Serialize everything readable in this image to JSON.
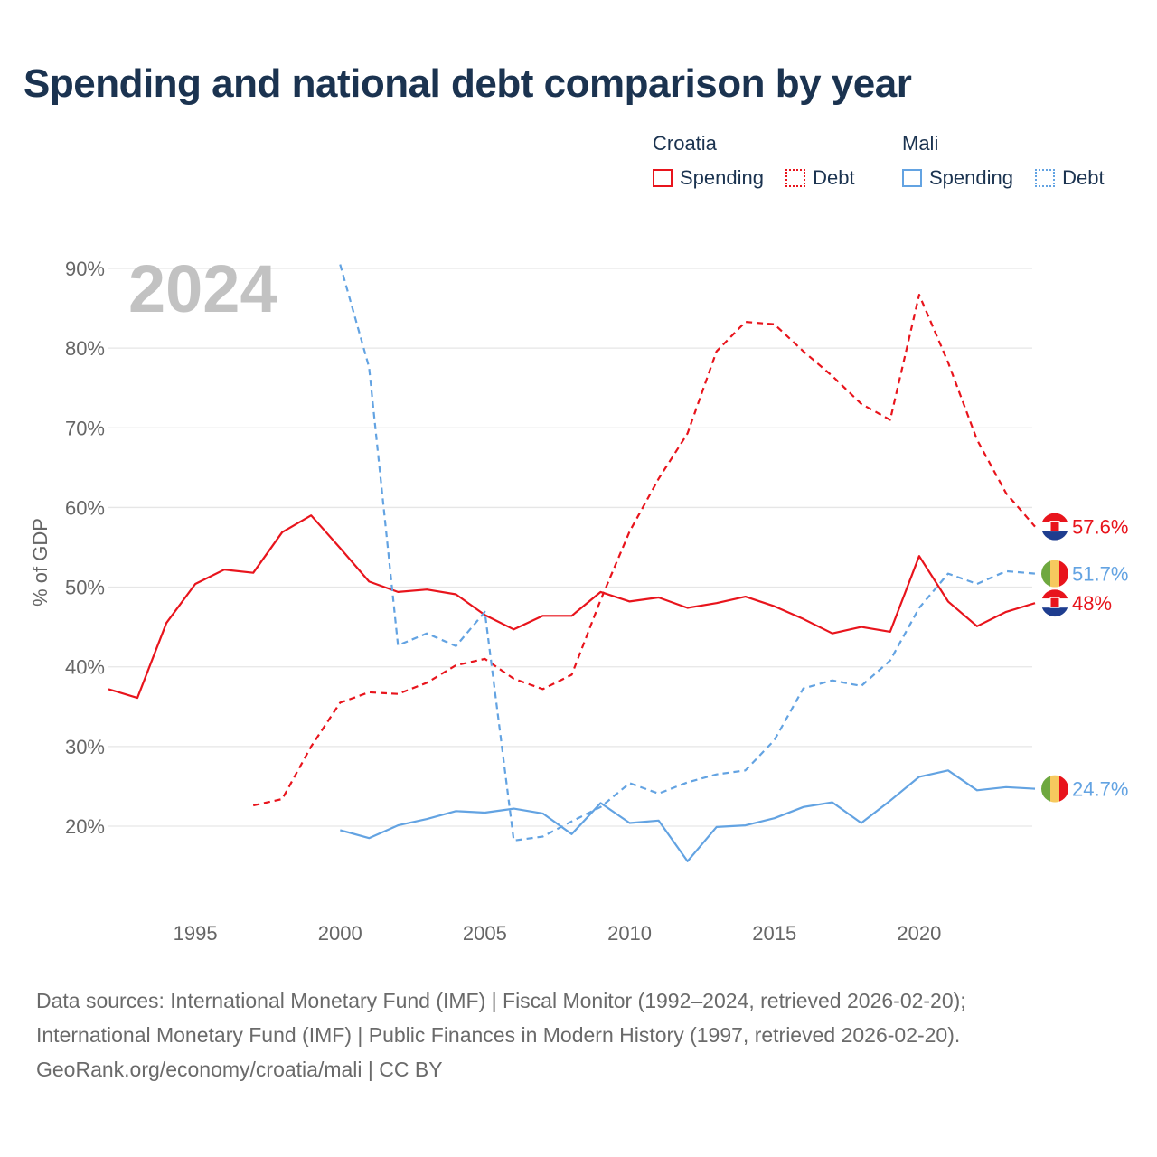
{
  "chart_data": {
    "type": "line",
    "title": "Spending and national debt comparison by year",
    "year_label": "2024",
    "ylabel": "% of GDP",
    "xlabel": "",
    "xlim": [
      1992,
      2024
    ],
    "ylim": [
      10,
      90
    ],
    "y_ticks": [
      20,
      30,
      40,
      50,
      60,
      70,
      80,
      90
    ],
    "y_tick_labels": [
      "20%",
      "30%",
      "40%",
      "50%",
      "60%",
      "70%",
      "80%",
      "90%"
    ],
    "x_ticks": [
      1995,
      2000,
      2005,
      2010,
      2015,
      2020
    ],
    "x_tick_labels": [
      "1995",
      "2000",
      "2005",
      "2010",
      "2015",
      "2020"
    ],
    "legend": {
      "placement": "top-right",
      "groups": [
        {
          "name": "Croatia",
          "items": [
            "Spending",
            "Debt"
          ]
        },
        {
          "name": "Mali",
          "items": [
            "Spending",
            "Debt"
          ]
        }
      ]
    },
    "series": [
      {
        "name": "Croatia Spending",
        "country": "Croatia",
        "metric": "Spending",
        "color": "#e8141c",
        "style": "solid",
        "end_label": "48%",
        "x": [
          1992,
          1993,
          1994,
          1995,
          1996,
          1997,
          1998,
          1999,
          2000,
          2001,
          2002,
          2003,
          2004,
          2005,
          2006,
          2007,
          2008,
          2009,
          2010,
          2011,
          2012,
          2013,
          2014,
          2015,
          2016,
          2017,
          2018,
          2019,
          2020,
          2021,
          2022,
          2023,
          2024
        ],
        "values": [
          37.2,
          36.1,
          45.5,
          50.4,
          52.2,
          51.8,
          56.9,
          59.0,
          54.9,
          50.7,
          49.4,
          49.7,
          49.1,
          46.5,
          44.7,
          46.4,
          46.4,
          49.4,
          48.2,
          48.7,
          47.4,
          48.0,
          48.8,
          47.6,
          46.0,
          44.2,
          45.0,
          44.4,
          53.9,
          48.2,
          45.1,
          46.9,
          48.0
        ]
      },
      {
        "name": "Croatia Debt",
        "country": "Croatia",
        "metric": "Debt",
        "color": "#e8141c",
        "style": "dashed",
        "end_label": "57.6%",
        "x": [
          1997,
          1998,
          1999,
          2000,
          2001,
          2002,
          2003,
          2004,
          2005,
          2006,
          2007,
          2008,
          2009,
          2010,
          2011,
          2012,
          2013,
          2014,
          2015,
          2016,
          2017,
          2018,
          2019,
          2020,
          2021,
          2022,
          2023,
          2024
        ],
        "values": [
          22.6,
          23.4,
          30.0,
          35.5,
          36.8,
          36.6,
          38.0,
          40.2,
          41.0,
          38.5,
          37.2,
          39.0,
          48.4,
          57.0,
          63.6,
          69.3,
          79.6,
          83.3,
          83.0,
          79.6,
          76.5,
          73.0,
          71.0,
          86.7,
          78.2,
          68.5,
          61.8,
          57.6
        ]
      },
      {
        "name": "Mali Spending",
        "country": "Mali",
        "metric": "Spending",
        "color": "#63a3e2",
        "style": "solid",
        "end_label": "24.7%",
        "x": [
          2000,
          2001,
          2002,
          2003,
          2004,
          2005,
          2006,
          2007,
          2008,
          2009,
          2010,
          2011,
          2012,
          2013,
          2014,
          2015,
          2016,
          2017,
          2018,
          2019,
          2020,
          2021,
          2022,
          2023,
          2024
        ],
        "values": [
          19.5,
          18.5,
          20.1,
          20.9,
          21.9,
          21.7,
          22.2,
          21.6,
          19.0,
          22.9,
          20.4,
          20.7,
          15.6,
          19.9,
          20.1,
          21.0,
          22.4,
          23.0,
          20.4,
          23.2,
          26.2,
          27.0,
          24.5,
          24.9,
          24.7
        ]
      },
      {
        "name": "Mali Debt",
        "country": "Mali",
        "metric": "Debt",
        "color": "#63a3e2",
        "style": "dashed",
        "end_label": "51.7%",
        "x": [
          2000,
          2001,
          2002,
          2003,
          2004,
          2005,
          2006,
          2007,
          2008,
          2009,
          2010,
          2011,
          2012,
          2013,
          2014,
          2015,
          2016,
          2017,
          2018,
          2019,
          2020,
          2021,
          2022,
          2023,
          2024
        ],
        "values": [
          90.5,
          77.6,
          42.7,
          44.2,
          42.6,
          46.9,
          18.2,
          18.7,
          20.6,
          22.4,
          25.4,
          24.1,
          25.5,
          26.5,
          27.0,
          30.8,
          37.3,
          38.3,
          37.6,
          40.8,
          47.4,
          51.7,
          50.4,
          52.0,
          51.7
        ]
      }
    ]
  },
  "colors": {
    "croatia": "#e8141c",
    "mali": "#63a3e2",
    "title": "#1b3350",
    "grid": "#e6e6e6",
    "axis_text": "#666666",
    "year_watermark": "#c2c2c2"
  },
  "markers": {
    "croatia_flag_icon": "croatia-flag-icon",
    "mali_flag_icon": "mali-flag-icon"
  },
  "footer": {
    "line1": "Data sources: International Monetary Fund (IMF) | Fiscal Monitor (1992–2024, retrieved 2026-02-20);",
    "line2": "International Monetary Fund (IMF) | Public Finances in Modern History (1997, retrieved 2026-02-20).",
    "line3": "GeoRank.org/economy/croatia/mali | CC BY"
  }
}
